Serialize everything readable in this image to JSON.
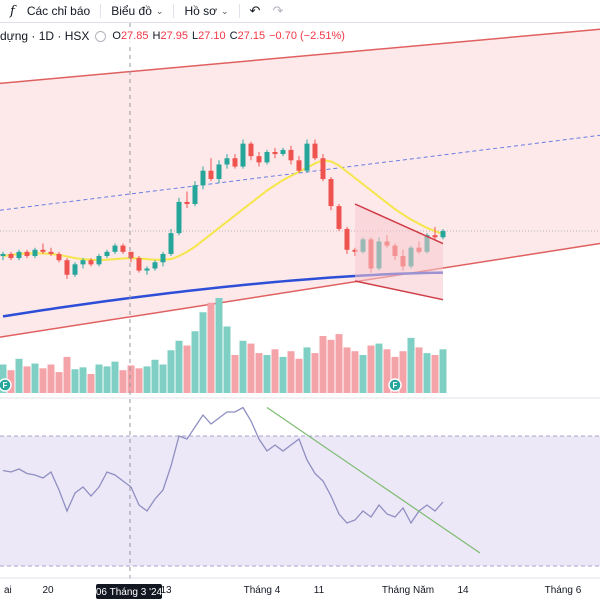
{
  "toolbar": {
    "indicators_label": "Các chỉ báo",
    "chart_label": "Biểu đồ",
    "profile_label": "Hồ sơ"
  },
  "legend": {
    "symbol": "dựng · 1D · HSX",
    "o_key": "O",
    "o_val": "27.85",
    "h_key": "H",
    "h_val": "27.95",
    "l_key": "L",
    "l_val": "27.10",
    "c_key": "C",
    "c_val": "27.15",
    "change": "−0.70 (−2.51%)"
  },
  "xaxis": {
    "ticks": [
      "ai",
      "20",
      "13",
      "Tháng 4",
      "11",
      "Tháng Năm",
      "14",
      "Tháng 6"
    ],
    "crosshair_label": "06 Tháng 3 '24"
  },
  "colors": {
    "up": "#26a69a",
    "down": "#ef5350",
    "up_vol": "#7fcfc4",
    "down_vol": "#f4a3a9",
    "ma": "#f5e64b",
    "ma_long": "#2d4fd8",
    "rsi": "#8e8ec2",
    "channel": "#e06060",
    "trendline": "#7dbb70"
  },
  "chart_data": [
    {
      "type": "candlestick",
      "description": "Daily price candles with short MA (yellow), long MA (blue) and rising regression channel",
      "candles": [
        [
          23.7,
          23.9,
          23.5,
          23.8
        ],
        [
          23.8,
          23.9,
          23.5,
          23.6
        ],
        [
          23.6,
          24.0,
          23.5,
          23.9
        ],
        [
          23.9,
          24.0,
          23.6,
          23.7
        ],
        [
          23.7,
          24.1,
          23.6,
          24.0
        ],
        [
          24.0,
          24.3,
          23.8,
          23.9
        ],
        [
          23.9,
          24.1,
          23.7,
          23.8
        ],
        [
          23.8,
          23.9,
          23.4,
          23.5
        ],
        [
          23.5,
          23.6,
          22.6,
          22.8
        ],
        [
          22.8,
          23.4,
          22.7,
          23.3
        ],
        [
          23.3,
          23.6,
          23.1,
          23.5
        ],
        [
          23.5,
          23.6,
          23.2,
          23.3
        ],
        [
          23.3,
          23.8,
          23.2,
          23.7
        ],
        [
          23.7,
          24.0,
          23.6,
          23.9
        ],
        [
          23.9,
          24.3,
          23.8,
          24.2
        ],
        [
          24.2,
          24.3,
          23.8,
          23.9
        ],
        [
          23.9,
          23.9,
          23.4,
          23.6
        ],
        [
          23.6,
          23.7,
          22.9,
          23.0
        ],
        [
          23.0,
          23.2,
          22.8,
          23.1
        ],
        [
          23.1,
          23.5,
          23.0,
          23.4
        ],
        [
          23.4,
          23.9,
          23.2,
          23.8
        ],
        [
          23.8,
          25.0,
          23.7,
          24.8
        ],
        [
          24.8,
          26.5,
          24.7,
          26.3
        ],
        [
          26.3,
          26.8,
          26.0,
          26.2
        ],
        [
          26.2,
          27.3,
          26.1,
          27.1
        ],
        [
          27.1,
          28.0,
          26.9,
          27.8
        ],
        [
          27.8,
          28.4,
          27.3,
          27.4
        ],
        [
          27.4,
          28.3,
          27.2,
          28.1
        ],
        [
          28.1,
          28.6,
          27.9,
          28.4
        ],
        [
          28.4,
          28.6,
          27.9,
          28.0
        ],
        [
          28.0,
          29.3,
          27.9,
          29.1
        ],
        [
          29.1,
          29.2,
          28.3,
          28.5
        ],
        [
          28.5,
          28.7,
          28.0,
          28.2
        ],
        [
          28.2,
          28.8,
          28.1,
          28.7
        ],
        [
          28.7,
          28.9,
          28.4,
          28.6
        ],
        [
          28.6,
          28.9,
          28.5,
          28.8
        ],
        [
          28.8,
          29.0,
          28.1,
          28.3
        ],
        [
          28.3,
          28.5,
          27.7,
          27.8
        ],
        [
          27.8,
          29.3,
          27.7,
          29.1
        ],
        [
          29.1,
          29.3,
          28.3,
          28.4
        ],
        [
          28.4,
          28.6,
          27.3,
          27.4
        ],
        [
          27.4,
          27.5,
          25.9,
          26.1
        ],
        [
          26.1,
          26.2,
          24.9,
          25.0
        ],
        [
          25.0,
          25.1,
          23.8,
          24.0
        ],
        [
          24.0,
          24.1,
          23.7,
          23.9
        ],
        [
          23.9,
          24.6,
          23.8,
          24.5
        ],
        [
          24.5,
          24.6,
          22.9,
          23.1
        ],
        [
          23.1,
          24.6,
          23.0,
          24.4
        ],
        [
          24.4,
          24.7,
          24.1,
          24.2
        ],
        [
          24.2,
          24.3,
          23.5,
          23.7
        ],
        [
          23.7,
          24.0,
          23.0,
          23.2
        ],
        [
          23.2,
          24.2,
          23.1,
          24.1
        ],
        [
          24.1,
          24.4,
          23.8,
          23.9
        ],
        [
          23.9,
          24.8,
          23.8,
          24.7
        ],
        [
          24.7,
          25.1,
          24.5,
          24.6
        ],
        [
          24.6,
          25.0,
          24.5,
          24.9
        ]
      ],
      "ma_short": [
        23.7,
        23.75,
        23.8,
        23.82,
        23.83,
        23.82,
        23.8,
        23.75,
        23.68,
        23.6,
        23.55,
        23.52,
        23.5,
        23.52,
        23.55,
        23.58,
        23.6,
        23.58,
        23.55,
        23.52,
        23.52,
        23.55,
        23.7,
        23.9,
        24.15,
        24.45,
        24.75,
        25.05,
        25.35,
        25.65,
        25.95,
        26.25,
        26.55,
        26.85,
        27.1,
        27.35,
        27.55,
        27.75,
        27.95,
        28.15,
        28.3,
        28.25,
        28.05,
        27.75,
        27.45,
        27.15,
        26.85,
        26.55,
        26.25,
        25.95,
        25.7,
        25.45,
        25.25,
        25.05,
        24.9,
        24.75
      ],
      "ma_long_range": [
        20.8,
        22.9
      ],
      "channel": {
        "upper": [
          32.0,
          34.6
        ],
        "mid": [
          25.9,
          29.5
        ],
        "lower": [
          19.8,
          24.3
        ]
      }
    },
    {
      "type": "bar",
      "description": "Volume bars (green up / red down)",
      "volume": [
        30,
        24,
        36,
        28,
        31,
        26,
        30,
        22,
        38,
        25,
        27,
        20,
        30,
        28,
        33,
        24,
        29,
        26,
        28,
        35,
        30,
        45,
        55,
        50,
        65,
        85,
        95,
        100,
        70,
        40,
        55,
        52,
        42,
        40,
        46,
        38,
        44,
        36,
        48,
        42,
        60,
        56,
        62,
        48,
        44,
        40,
        50,
        52,
        46,
        38,
        44,
        58,
        48,
        42,
        40,
        46
      ]
    },
    {
      "type": "line",
      "description": "RSI oscillator with descending trendline",
      "rsi": [
        57,
        56,
        58,
        55,
        54,
        52,
        56,
        44,
        30,
        42,
        46,
        40,
        46,
        56,
        54,
        50,
        46,
        34,
        30,
        38,
        44,
        60,
        80,
        78,
        86,
        94,
        88,
        92,
        96,
        96,
        99,
        90,
        78,
        70,
        74,
        70,
        74,
        78,
        64,
        55,
        50,
        40,
        28,
        22,
        24,
        30,
        26,
        34,
        28,
        26,
        32,
        22,
        30,
        34,
        30,
        36
      ]
    }
  ]
}
